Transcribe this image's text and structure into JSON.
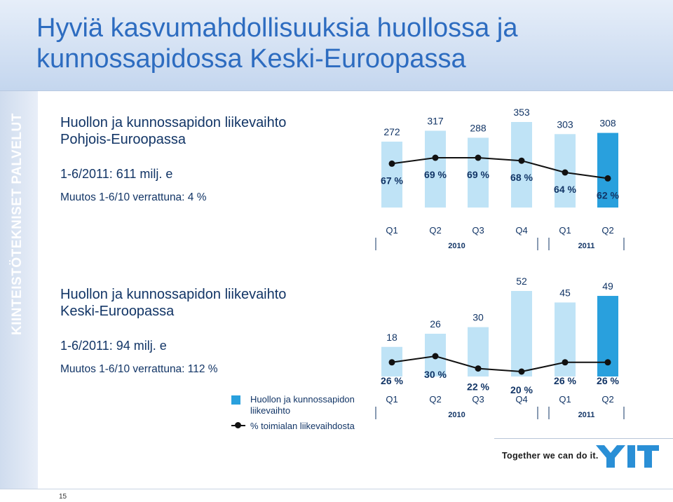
{
  "page": {
    "title": "Hyviä kasvumahdollisuuksia huollossa ja kunnossapidossa Keski-Euroopassa",
    "side_label": "KIINTEISTÖTEKNISET PALVELUT",
    "slogan": "Together we can do it.",
    "logo_text": "YIT",
    "page_number": "15"
  },
  "blocks": [
    {
      "heading_line1": "Huollon ja kunnossapidon liikevaihto",
      "heading_line2": "Pohjois-Euroopassa",
      "total": "1-6/2011: 611 milj. e",
      "change": "Muutos 1-6/10 verrattuna: 4 %"
    },
    {
      "heading_line1": "Huollon ja kunnossapidon liikevaihto",
      "heading_line2": "Keski-Euroopassa",
      "total": "1-6/2011: 94 milj. e",
      "change": "Muutos 1-6/10 verrattuna: 112 %"
    }
  ],
  "legend": {
    "bar_line1": "Huollon ja kunnossapidon",
    "bar_line2": "liikevaihto",
    "line": "% toimialan liikevaihdosta"
  },
  "colors": {
    "bar": "#29a0dd",
    "bar_light": "#bfe3f6",
    "line": "#111111",
    "title": "#2d6cc0"
  },
  "chart_data": [
    {
      "type": "bar",
      "categories": [
        "Q1",
        "Q2",
        "Q3",
        "Q4",
        "Q1",
        "Q2"
      ],
      "groups": [
        {
          "label": "2010",
          "span": [
            0,
            3
          ]
        },
        {
          "label": "2011",
          "span": [
            4,
            5
          ]
        }
      ],
      "series": [
        {
          "values": [
            272,
            317,
            288,
            353,
            303,
            308
          ],
          "labels": [
            "272",
            "317",
            "288",
            "353",
            "303",
            "308"
          ]
        },
        {
          "values": [
            67,
            69,
            69,
            68,
            64,
            62
          ],
          "labels": [
            "67 %",
            "69 %",
            "69 %",
            "68 %",
            "64 %",
            "62 %"
          ]
        }
      ],
      "highlight_index": 5
    },
    {
      "type": "bar",
      "categories": [
        "Q1",
        "Q2",
        "Q3",
        "Q4",
        "Q1",
        "Q2"
      ],
      "groups": [
        {
          "label": "2010",
          "span": [
            0,
            3
          ]
        },
        {
          "label": "2011",
          "span": [
            4,
            5
          ]
        }
      ],
      "series": [
        {
          "values": [
            18,
            26,
            30,
            52,
            45,
            49
          ],
          "labels": [
            "18",
            "26",
            "30",
            "52",
            "45",
            "49"
          ]
        },
        {
          "values": [
            26,
            30,
            22,
            20,
            26,
            26
          ],
          "labels": [
            "26 %",
            "30 %",
            "22 %",
            "20 %",
            "26 %",
            "26 %"
          ]
        }
      ],
      "highlight_index": 5
    }
  ]
}
